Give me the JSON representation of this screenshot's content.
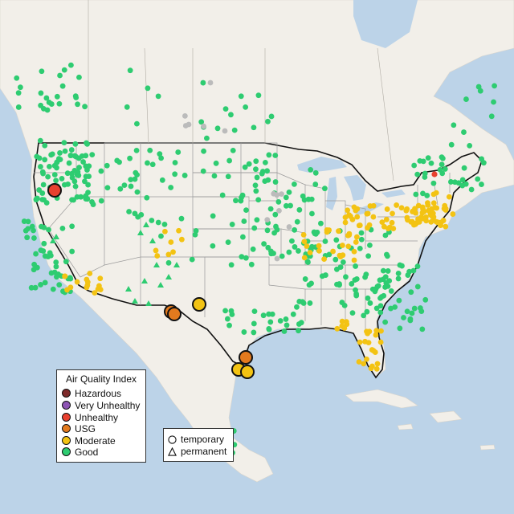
{
  "legend": {
    "title": "Air Quality Index",
    "categories": [
      {
        "label": "Hazardous",
        "color": "#7e2b2b"
      },
      {
        "label": "Very Unhealthy",
        "color": "#8e55b5"
      },
      {
        "label": "Unhealthy",
        "color": "#e8402f"
      },
      {
        "label": "USG",
        "color": "#e37a1e"
      },
      {
        "label": "Moderate",
        "color": "#f3c313"
      },
      {
        "label": "Good",
        "color": "#2ecc71"
      }
    ]
  },
  "monitor_types": {
    "temporary": "temporary",
    "permanent": "permanent"
  },
  "colors": {
    "water": "#bcd3e8",
    "land": "#f2efe9",
    "no_data": "#bbbbbb"
  }
}
